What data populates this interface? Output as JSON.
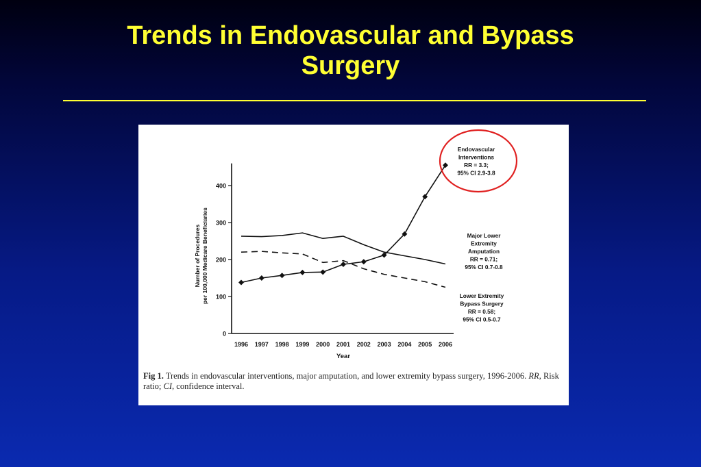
{
  "slide": {
    "title_line1": "Trends in Endovascular and Bypass",
    "title_line2": "Surgery"
  },
  "caption": {
    "label": "Fig 1.",
    "text_a": "Trends in endovascular interventions, major amputation, and lower extremity bypass surgery, 1996-2006. ",
    "rr": "RR",
    "text_b": ", Risk ratio; ",
    "ci": "CI",
    "text_c": ", confidence interval."
  },
  "colors": {
    "title": "#ffff33",
    "highlight_circle": "#e02020",
    "background_top": "#000010",
    "background_bottom": "#0a2ab0"
  },
  "chart_data": {
    "type": "line",
    "xlabel": "Year",
    "ylabel_line1": "Number of Procedures",
    "ylabel_line2": "per 100,000 Medicare Beneficiaries",
    "x": [
      "1996",
      "1997",
      "1998",
      "1999",
      "2000",
      "2001",
      "2002",
      "2003",
      "2004",
      "2005",
      "2006"
    ],
    "ylim": [
      0,
      460
    ],
    "yticks": [
      0,
      100,
      200,
      300,
      400
    ],
    "grid": false,
    "series": [
      {
        "key": "endovascular",
        "style": "solid-diamond",
        "values": [
          138,
          150,
          157,
          165,
          166,
          187,
          194,
          212,
          269,
          370,
          455
        ],
        "label_lines": [
          "Endovascular",
          "Interventions",
          "RR = 3.3;",
          "95% CI 2.9-3.8"
        ],
        "highlighted": true
      },
      {
        "key": "amputation",
        "style": "solid",
        "values": [
          263,
          262,
          265,
          272,
          257,
          263,
          240,
          220,
          210,
          200,
          188
        ],
        "label_lines": [
          "Major Lower",
          "Extremity",
          "Amputation",
          "RR = 0.71;",
          "95% CI 0.7-0.8"
        ]
      },
      {
        "key": "bypass",
        "style": "dashed",
        "values": [
          220,
          222,
          218,
          215,
          192,
          197,
          175,
          160,
          150,
          140,
          125
        ],
        "label_lines": [
          "Lower Extremity",
          "Bypass Surgery",
          "RR = 0.58;",
          "95% CI 0.5-0.7"
        ]
      }
    ]
  }
}
